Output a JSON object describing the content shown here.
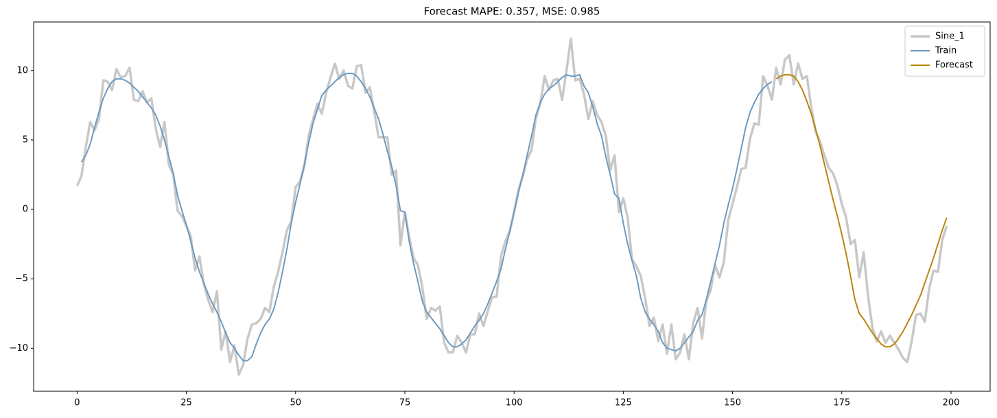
{
  "chart_data": {
    "type": "line",
    "title": "Forecast MAPE: 0.357, MSE: 0.985",
    "x": [
      0,
      1,
      2,
      3,
      4,
      5,
      6,
      7,
      8,
      9,
      10,
      11,
      12,
      13,
      14,
      15,
      16,
      17,
      18,
      19,
      20,
      21,
      22,
      23,
      24,
      25,
      26,
      27,
      28,
      29,
      30,
      31,
      32,
      33,
      34,
      35,
      36,
      37,
      38,
      39,
      40,
      41,
      42,
      43,
      44,
      45,
      46,
      47,
      48,
      49,
      50,
      51,
      52,
      53,
      54,
      55,
      56,
      57,
      58,
      59,
      60,
      61,
      62,
      63,
      64,
      65,
      66,
      67,
      68,
      69,
      70,
      71,
      72,
      73,
      74,
      75,
      76,
      77,
      78,
      79,
      80,
      81,
      82,
      83,
      84,
      85,
      86,
      87,
      88,
      89,
      90,
      91,
      92,
      93,
      94,
      95,
      96,
      97,
      98,
      99,
      100,
      101,
      102,
      103,
      104,
      105,
      106,
      107,
      108,
      109,
      110,
      111,
      112,
      113,
      114,
      115,
      116,
      117,
      118,
      119,
      120,
      121,
      122,
      123,
      124,
      125,
      126,
      127,
      128,
      129,
      130,
      131,
      132,
      133,
      134,
      135,
      136,
      137,
      138,
      139,
      140,
      141,
      142,
      143,
      144,
      145,
      146,
      147,
      148,
      149,
      150,
      151,
      152,
      153,
      154,
      155,
      156,
      157,
      158,
      159,
      160,
      161,
      162,
      163,
      164,
      165,
      166,
      167,
      168,
      169,
      170,
      171,
      172,
      173,
      174,
      175,
      176,
      177,
      178,
      179,
      180,
      181,
      182,
      183,
      184,
      185,
      186,
      187,
      188,
      189,
      190,
      191,
      192,
      193,
      194,
      195,
      196,
      197,
      198,
      199
    ],
    "series": [
      {
        "name": "Sine_1",
        "color": "#c8c8c8",
        "width": 3.5,
        "values": [
          1.7,
          2.4,
          4.5,
          6.3,
          5.7,
          6.5,
          9.3,
          9.2,
          8.6,
          10.1,
          9.5,
          9.6,
          10.2,
          7.9,
          7.8,
          8.5,
          7.7,
          8.0,
          5.8,
          4.5,
          6.3,
          3.2,
          2.5,
          -0.1,
          -0.5,
          -1.2,
          -1.9,
          -4.4,
          -3.4,
          -5.4,
          -6.5,
          -7.4,
          -5.9,
          -10.1,
          -8.8,
          -11.0,
          -9.8,
          -11.9,
          -11.2,
          -9.3,
          -8.3,
          -8.2,
          -7.9,
          -7.1,
          -7.4,
          -5.6,
          -4.5,
          -3.1,
          -1.5,
          -0.9,
          1.6,
          2.0,
          3.1,
          5.3,
          6.5,
          7.6,
          6.9,
          8.4,
          9.5,
          10.5,
          9.4,
          10.0,
          8.9,
          8.7,
          10.3,
          10.4,
          8.4,
          8.8,
          7.0,
          5.2,
          5.2,
          5.2,
          2.5,
          2.8,
          -2.6,
          -0.2,
          -2.0,
          -3.5,
          -4.0,
          -5.6,
          -7.9,
          -7.1,
          -7.3,
          -7.0,
          -9.6,
          -10.3,
          -10.3,
          -9.1,
          -9.6,
          -10.3,
          -9.0,
          -9.0,
          -7.5,
          -8.4,
          -7.3,
          -6.3,
          -6.3,
          -3.4,
          -2.3,
          -1.6,
          -0.2,
          1.4,
          2.4,
          3.6,
          4.3,
          6.6,
          7.6,
          9.6,
          8.6,
          9.3,
          9.4,
          7.9,
          10.0,
          12.3,
          9.3,
          9.4,
          8.3,
          6.5,
          7.8,
          6.8,
          6.3,
          5.3,
          2.8,
          3.9,
          -0.2,
          0.8,
          -0.6,
          -3.6,
          -4.1,
          -4.8,
          -6.4,
          -8.4,
          -7.8,
          -9.5,
          -8.3,
          -10.4,
          -8.3,
          -10.8,
          -10.3,
          -9.0,
          -10.8,
          -8.2,
          -7.1,
          -9.3,
          -6.6,
          -5.8,
          -4.0,
          -4.9,
          -3.8,
          -0.8,
          0.4,
          1.6,
          2.9,
          3.0,
          5.1,
          6.2,
          6.1,
          9.6,
          8.9,
          7.9,
          10.2,
          9.0,
          10.8,
          11.1,
          9.0,
          10.5,
          9.4,
          9.6,
          7.4,
          5.6,
          4.9,
          3.9,
          3.0,
          2.6,
          1.7,
          0.4,
          -0.6,
          -2.5,
          -2.2,
          -4.9,
          -3.1,
          -6.2,
          -8.5,
          -9.5,
          -8.8,
          -9.6,
          -9.1,
          -9.6,
          -10.1,
          -10.7,
          -11.0,
          -9.5,
          -7.6,
          -7.5,
          -8.1,
          -5.7,
          -4.4,
          -4.5,
          -2.2,
          -1.2
        ]
      },
      {
        "name": "Train",
        "color": "#6b9bc3",
        "width": 2,
        "values": [
          null,
          3.4,
          3.9,
          4.7,
          5.9,
          7.0,
          8.0,
          8.7,
          9.2,
          9.4,
          9.4,
          9.3,
          9.1,
          8.8,
          8.5,
          8.1,
          7.7,
          7.3,
          6.8,
          6.0,
          5.0,
          3.8,
          2.6,
          1.0,
          -0.1,
          -1.1,
          -2.3,
          -3.5,
          -4.5,
          -5.3,
          -6.1,
          -6.8,
          -7.4,
          -8.1,
          -8.9,
          -9.6,
          -10.0,
          -10.5,
          -10.9,
          -10.9,
          -10.6,
          -9.7,
          -8.9,
          -8.3,
          -7.9,
          -7.2,
          -6.0,
          -4.5,
          -2.9,
          -1.0,
          0.5,
          1.8,
          3.2,
          4.8,
          6.2,
          7.2,
          8.2,
          8.6,
          8.9,
          9.2,
          9.5,
          9.7,
          9.8,
          9.8,
          9.6,
          9.2,
          8.7,
          8.1,
          7.3,
          6.5,
          5.4,
          4.2,
          3.1,
          1.7,
          -0.1,
          -0.2,
          -2.3,
          -3.9,
          -5.2,
          -6.6,
          -7.4,
          -7.8,
          -8.2,
          -8.6,
          -9.1,
          -9.6,
          -9.9,
          -9.9,
          -9.7,
          -9.4,
          -8.9,
          -8.4,
          -8.0,
          -7.5,
          -6.8,
          -6.0,
          -5.2,
          -4.3,
          -2.9,
          -1.6,
          -0.2,
          1.2,
          2.5,
          3.9,
          5.3,
          6.8,
          7.7,
          8.3,
          8.7,
          8.9,
          9.2,
          9.5,
          9.7,
          9.6,
          9.6,
          9.7,
          8.9,
          8.4,
          7.4,
          6.2,
          5.3,
          3.8,
          2.5,
          1.1,
          0.8,
          -1.0,
          -2.5,
          -3.7,
          -4.8,
          -6.4,
          -7.4,
          -7.9,
          -8.3,
          -8.8,
          -9.6,
          -10.0,
          -10.1,
          -10.2,
          -10.0,
          -9.6,
          -9.2,
          -8.8,
          -8.0,
          -7.6,
          -6.5,
          -5.2,
          -3.9,
          -2.6,
          -1.0,
          0.3,
          1.5,
          2.9,
          4.4,
          5.9,
          7.0,
          7.7,
          8.3,
          8.7,
          9.0,
          9.2,
          null,
          null,
          null,
          null,
          null,
          null,
          null,
          null,
          null,
          null,
          null,
          null,
          null,
          null,
          null,
          null,
          null,
          null,
          null,
          null,
          null,
          null,
          null,
          null,
          null,
          null,
          null,
          null,
          null,
          null,
          null,
          null,
          null,
          null,
          null,
          null,
          null,
          null,
          null,
          null
        ]
      },
      {
        "name": "Forecast",
        "color": "#b8860b",
        "width": 2,
        "values": [
          null,
          null,
          null,
          null,
          null,
          null,
          null,
          null,
          null,
          null,
          null,
          null,
          null,
          null,
          null,
          null,
          null,
          null,
          null,
          null,
          null,
          null,
          null,
          null,
          null,
          null,
          null,
          null,
          null,
          null,
          null,
          null,
          null,
          null,
          null,
          null,
          null,
          null,
          null,
          null,
          null,
          null,
          null,
          null,
          null,
          null,
          null,
          null,
          null,
          null,
          null,
          null,
          null,
          null,
          null,
          null,
          null,
          null,
          null,
          null,
          null,
          null,
          null,
          null,
          null,
          null,
          null,
          null,
          null,
          null,
          null,
          null,
          null,
          null,
          null,
          null,
          null,
          null,
          null,
          null,
          null,
          null,
          null,
          null,
          null,
          null,
          null,
          null,
          null,
          null,
          null,
          null,
          null,
          null,
          null,
          null,
          null,
          null,
          null,
          null,
          null,
          null,
          null,
          null,
          null,
          null,
          null,
          null,
          null,
          null,
          null,
          null,
          null,
          null,
          null,
          null,
          null,
          null,
          null,
          null,
          null,
          null,
          null,
          null,
          null,
          null,
          null,
          null,
          null,
          null,
          null,
          null,
          null,
          null,
          null,
          null,
          null,
          null,
          null,
          null,
          null,
          null,
          null,
          null,
          null,
          null,
          null,
          null,
          null,
          null,
          null,
          null,
          null,
          null,
          null,
          null,
          null,
          null,
          null,
          null,
          9.4,
          9.6,
          9.7,
          9.7,
          9.6,
          9.2,
          8.6,
          7.8,
          6.9,
          5.8,
          4.6,
          3.3,
          2.0,
          0.7,
          -0.5,
          -1.8,
          -3.2,
          -4.8,
          -6.5,
          -7.5,
          -7.9,
          -8.4,
          -8.9,
          -9.3,
          -9.7,
          -9.9,
          -9.9,
          -9.7,
          -9.3,
          -8.8,
          -8.2,
          -7.6,
          -6.9,
          -6.2,
          -5.3,
          -4.4,
          -3.5,
          -2.5,
          -1.5,
          -0.6
        ]
      }
    ],
    "xlim": [
      -9.95,
      208.95
    ],
    "ylim": [
      -13.1,
      13.5
    ],
    "xticks": [
      0,
      25,
      50,
      75,
      100,
      125,
      150,
      175,
      200
    ],
    "yticks": [
      {
        "value": -10,
        "label": "−10"
      },
      {
        "value": -5,
        "label": "−5"
      },
      0,
      5,
      10
    ],
    "legend": "upper right",
    "grid": false
  }
}
